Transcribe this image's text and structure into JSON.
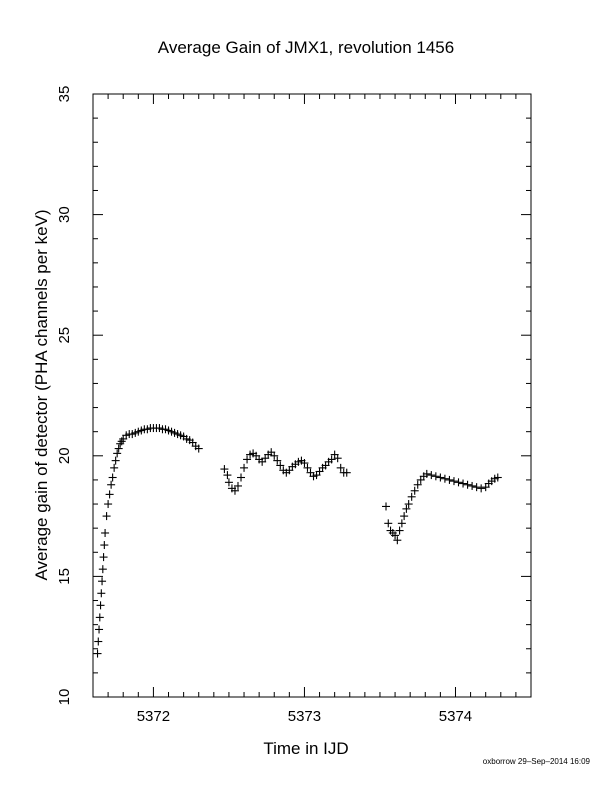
{
  "chart_data": {
    "type": "scatter",
    "title": "Average Gain of JMX1, revolution 1456",
    "xlabel": "Time in IJD",
    "ylabel": "Average gain of detector (PHA channels per keV)",
    "xlim": [
      5371.6,
      5374.5
    ],
    "ylim": [
      10,
      35
    ],
    "x_ticks": [
      5372,
      5373,
      5374
    ],
    "x_tick_labels": [
      "5372",
      "5373",
      "5374"
    ],
    "y_ticks": [
      10,
      15,
      20,
      25,
      30,
      35
    ],
    "y_tick_labels": [
      "10",
      "15",
      "20",
      "25",
      "30",
      "35"
    ],
    "marker": "plus",
    "grid": false,
    "legend": "none",
    "series": [
      {
        "points": [
          [
            5371.63,
            11.8
          ],
          [
            5371.635,
            12.3
          ],
          [
            5371.64,
            12.8
          ],
          [
            5371.645,
            13.3
          ],
          [
            5371.65,
            13.8
          ],
          [
            5371.655,
            14.3
          ],
          [
            5371.66,
            14.8
          ],
          [
            5371.665,
            15.3
          ],
          [
            5371.67,
            15.8
          ],
          [
            5371.675,
            16.3
          ],
          [
            5371.68,
            16.8
          ],
          [
            5371.69,
            17.5
          ],
          [
            5371.7,
            18.0
          ],
          [
            5371.71,
            18.4
          ],
          [
            5371.72,
            18.8
          ],
          [
            5371.73,
            19.1
          ],
          [
            5371.74,
            19.5
          ],
          [
            5371.75,
            19.8
          ],
          [
            5371.76,
            20.1
          ],
          [
            5371.77,
            20.3
          ],
          [
            5371.78,
            20.5
          ],
          [
            5371.79,
            20.6
          ],
          [
            5371.8,
            20.7
          ],
          [
            5371.82,
            20.85
          ],
          [
            5371.84,
            20.9
          ],
          [
            5371.86,
            20.9
          ],
          [
            5371.88,
            20.95
          ],
          [
            5371.9,
            21.0
          ],
          [
            5371.92,
            21.05
          ],
          [
            5371.94,
            21.1
          ],
          [
            5371.96,
            21.1
          ],
          [
            5371.98,
            21.15
          ],
          [
            5372.0,
            21.15
          ],
          [
            5372.02,
            21.15
          ],
          [
            5372.04,
            21.15
          ],
          [
            5372.06,
            21.1
          ],
          [
            5372.08,
            21.1
          ],
          [
            5372.1,
            21.05
          ],
          [
            5372.12,
            21.0
          ],
          [
            5372.14,
            20.95
          ],
          [
            5372.16,
            20.9
          ],
          [
            5372.18,
            20.85
          ],
          [
            5372.2,
            20.8
          ],
          [
            5372.22,
            20.7
          ],
          [
            5372.24,
            20.65
          ],
          [
            5372.26,
            20.55
          ],
          [
            5372.28,
            20.4
          ],
          [
            5372.3,
            20.3
          ],
          [
            5372.47,
            19.45
          ],
          [
            5372.49,
            19.2
          ],
          [
            5372.5,
            18.9
          ],
          [
            5372.52,
            18.65
          ],
          [
            5372.54,
            18.55
          ],
          [
            5372.56,
            18.75
          ],
          [
            5372.58,
            19.1
          ],
          [
            5372.6,
            19.5
          ],
          [
            5372.62,
            19.85
          ],
          [
            5372.64,
            20.05
          ],
          [
            5372.66,
            20.1
          ],
          [
            5372.68,
            20.0
          ],
          [
            5372.7,
            19.85
          ],
          [
            5372.72,
            19.75
          ],
          [
            5372.74,
            19.9
          ],
          [
            5372.76,
            20.05
          ],
          [
            5372.78,
            20.15
          ],
          [
            5372.8,
            20.0
          ],
          [
            5372.82,
            19.8
          ],
          [
            5372.84,
            19.6
          ],
          [
            5372.86,
            19.4
          ],
          [
            5372.88,
            19.3
          ],
          [
            5372.9,
            19.4
          ],
          [
            5372.92,
            19.55
          ],
          [
            5372.94,
            19.65
          ],
          [
            5372.96,
            19.75
          ],
          [
            5372.98,
            19.8
          ],
          [
            5373.0,
            19.7
          ],
          [
            5373.02,
            19.5
          ],
          [
            5373.04,
            19.3
          ],
          [
            5373.06,
            19.15
          ],
          [
            5373.08,
            19.2
          ],
          [
            5373.1,
            19.35
          ],
          [
            5373.12,
            19.5
          ],
          [
            5373.14,
            19.6
          ],
          [
            5373.16,
            19.75
          ],
          [
            5373.18,
            19.85
          ],
          [
            5373.2,
            20.05
          ],
          [
            5373.22,
            19.9
          ],
          [
            5373.24,
            19.5
          ],
          [
            5373.26,
            19.3
          ],
          [
            5373.28,
            19.3
          ],
          [
            5373.54,
            17.9
          ],
          [
            5373.555,
            17.2
          ],
          [
            5373.57,
            16.9
          ],
          [
            5373.585,
            16.8
          ],
          [
            5373.6,
            16.7
          ],
          [
            5373.615,
            16.5
          ],
          [
            5373.63,
            16.9
          ],
          [
            5373.645,
            17.2
          ],
          [
            5373.66,
            17.5
          ],
          [
            5373.675,
            17.8
          ],
          [
            5373.69,
            18.0
          ],
          [
            5373.71,
            18.3
          ],
          [
            5373.73,
            18.55
          ],
          [
            5373.75,
            18.8
          ],
          [
            5373.77,
            19.0
          ],
          [
            5373.79,
            19.15
          ],
          [
            5373.81,
            19.25
          ],
          [
            5373.84,
            19.2
          ],
          [
            5373.87,
            19.15
          ],
          [
            5373.9,
            19.1
          ],
          [
            5373.93,
            19.05
          ],
          [
            5373.96,
            19.0
          ],
          [
            5373.99,
            18.95
          ],
          [
            5374.02,
            18.9
          ],
          [
            5374.05,
            18.85
          ],
          [
            5374.08,
            18.8
          ],
          [
            5374.11,
            18.75
          ],
          [
            5374.14,
            18.7
          ],
          [
            5374.17,
            18.65
          ],
          [
            5374.2,
            18.7
          ],
          [
            5374.22,
            18.85
          ],
          [
            5374.24,
            18.95
          ],
          [
            5374.26,
            19.05
          ],
          [
            5374.28,
            19.1
          ]
        ]
      }
    ]
  },
  "footer": "oxborrow 29–Sep–2014 16:09"
}
